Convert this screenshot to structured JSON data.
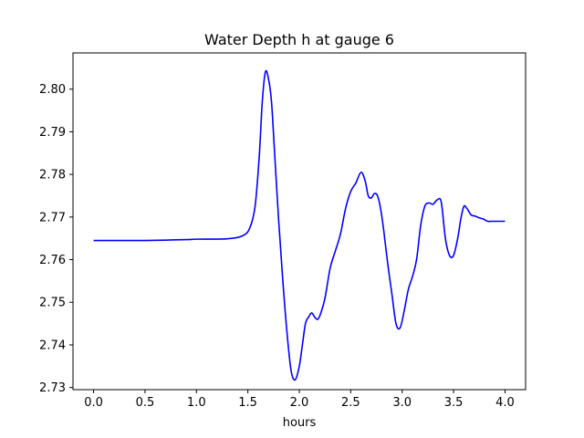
{
  "chart_data": {
    "type": "line",
    "title": "Water Depth h at gauge 6",
    "xlabel": "hours",
    "ylabel": "",
    "xlim": [
      -0.2,
      4.2
    ],
    "ylim": [
      2.7295,
      2.8085
    ],
    "grid": false,
    "x_ticks": [
      0.0,
      0.5,
      1.0,
      1.5,
      2.0,
      2.5,
      3.0,
      3.5,
      4.0
    ],
    "x_tick_labels": [
      "0.0",
      "0.5",
      "1.0",
      "1.5",
      "2.0",
      "2.5",
      "3.0",
      "3.5",
      "4.0"
    ],
    "y_ticks": [
      2.73,
      2.74,
      2.75,
      2.76,
      2.77,
      2.78,
      2.79,
      2.8
    ],
    "y_tick_labels": [
      "2.73",
      "2.74",
      "2.75",
      "2.76",
      "2.77",
      "2.78",
      "2.79",
      "2.80"
    ],
    "series": [
      {
        "color": "#0000ff",
        "x": [
          0.0,
          0.5,
          0.9,
          1.0,
          1.3,
          1.45,
          1.52,
          1.57,
          1.61,
          1.64,
          1.67,
          1.7,
          1.73,
          1.76,
          1.8,
          1.84,
          1.88,
          1.92,
          1.96,
          2.0,
          2.03,
          2.06,
          2.09,
          2.12,
          2.15,
          2.18,
          2.21,
          2.25,
          2.3,
          2.35,
          2.4,
          2.45,
          2.5,
          2.55,
          2.6,
          2.64,
          2.67,
          2.7,
          2.73,
          2.76,
          2.79,
          2.82,
          2.86,
          2.9,
          2.94,
          2.98,
          3.02,
          3.06,
          3.1,
          3.14,
          3.18,
          3.22,
          3.26,
          3.3,
          3.34,
          3.38,
          3.42,
          3.46,
          3.5,
          3.54,
          3.57,
          3.6,
          3.63,
          3.67,
          3.71,
          3.75,
          3.79,
          3.83,
          3.87,
          3.91,
          3.95,
          4.0
        ],
        "y": [
          2.7645,
          2.7645,
          2.7647,
          2.7648,
          2.7649,
          2.7656,
          2.7675,
          2.7725,
          2.784,
          2.797,
          2.804,
          2.8025,
          2.797,
          2.785,
          2.769,
          2.755,
          2.743,
          2.734,
          2.7318,
          2.735,
          2.74,
          2.745,
          2.7465,
          2.7475,
          2.7465,
          2.746,
          2.7475,
          2.751,
          2.758,
          2.762,
          2.766,
          2.772,
          2.776,
          2.778,
          2.7805,
          2.7785,
          2.775,
          2.7745,
          2.7755,
          2.775,
          2.772,
          2.767,
          2.759,
          2.752,
          2.745,
          2.744,
          2.748,
          2.753,
          2.756,
          2.76,
          2.768,
          2.7725,
          2.7733,
          2.773,
          2.774,
          2.7735,
          2.765,
          2.761,
          2.761,
          2.765,
          2.7695,
          2.7725,
          2.772,
          2.7705,
          2.7702,
          2.7698,
          2.7695,
          2.769,
          2.769,
          2.769,
          2.769,
          2.769
        ]
      }
    ]
  }
}
